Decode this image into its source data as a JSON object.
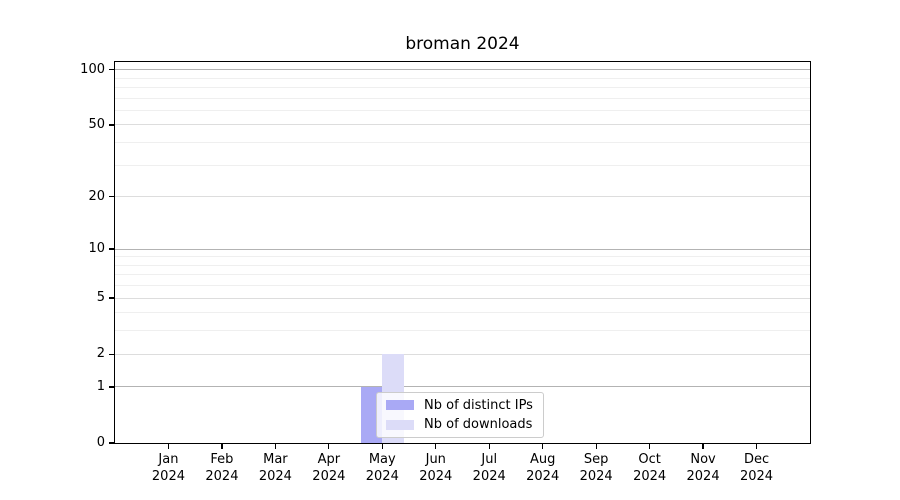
{
  "chart_data": {
    "type": "bar",
    "title": "broman 2024",
    "xlabel": "",
    "ylabel": "",
    "categories": [
      "Jan 2024",
      "Feb 2024",
      "Mar 2024",
      "Apr 2024",
      "May 2024",
      "Jun 2024",
      "Jul 2024",
      "Aug 2024",
      "Sep 2024",
      "Oct 2024",
      "Nov 2024",
      "Dec 2024"
    ],
    "series": [
      {
        "name": "Nb of distinct IPs",
        "color": "#a9a9f5",
        "values": [
          0,
          0,
          0,
          0,
          1,
          0,
          0,
          0,
          0,
          0,
          0,
          0
        ]
      },
      {
        "name": "Nb of downloads",
        "color": "#dcdcf8",
        "values": [
          0,
          0,
          0,
          0,
          2,
          0,
          0,
          0,
          0,
          0,
          0,
          0
        ]
      }
    ],
    "yscale": "log1p",
    "ylim": [
      0,
      110
    ],
    "y_major_ticks": [
      0,
      1,
      2,
      5,
      10,
      20,
      50,
      100
    ],
    "y_minor_gridlines": [
      3,
      4,
      6,
      7,
      8,
      9,
      30,
      40,
      60,
      70,
      80,
      90
    ],
    "grid": true,
    "legend_position": "lower center"
  },
  "style_colors": {
    "grid_power10": "#b3b3b3",
    "grid_labeled": "#dddddd",
    "grid_minor": "#efefef",
    "axis": "#000000",
    "legend_border": "#cccccc",
    "background": "#ffffff"
  }
}
